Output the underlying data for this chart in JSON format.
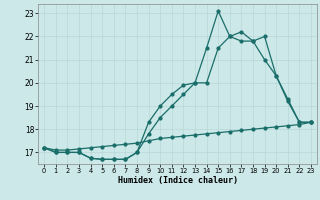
{
  "xlabel": "Humidex (Indice chaleur)",
  "background_color": "#cce8e8",
  "line_color": "#1a6e6a",
  "xlim": [
    -0.5,
    23.5
  ],
  "ylim": [
    16.5,
    23.4
  ],
  "yticks": [
    17,
    18,
    19,
    20,
    21,
    22,
    23
  ],
  "xticks": [
    0,
    1,
    2,
    3,
    4,
    5,
    6,
    7,
    8,
    9,
    10,
    11,
    12,
    13,
    14,
    15,
    16,
    17,
    18,
    19,
    20,
    21,
    22,
    23
  ],
  "curve_spike_x": [
    0,
    1,
    2,
    3,
    4,
    5,
    6,
    7,
    8,
    9,
    10,
    11,
    12,
    13,
    14,
    15,
    16,
    17,
    18,
    19,
    20,
    21,
    22,
    23
  ],
  "curve_spike_y": [
    17.2,
    17.0,
    17.0,
    17.0,
    16.75,
    16.7,
    16.7,
    16.7,
    17.0,
    18.3,
    19.0,
    19.5,
    19.9,
    20.0,
    21.5,
    23.1,
    22.0,
    22.2,
    21.8,
    22.0,
    20.3,
    19.2,
    18.3,
    18.3
  ],
  "curve_smooth_x": [
    0,
    1,
    2,
    3,
    4,
    5,
    6,
    7,
    8,
    9,
    10,
    11,
    12,
    13,
    14,
    15,
    16,
    17,
    18,
    19,
    20,
    21,
    22,
    23
  ],
  "curve_smooth_y": [
    17.2,
    17.0,
    17.0,
    17.0,
    16.75,
    16.7,
    16.7,
    16.7,
    17.0,
    17.8,
    18.5,
    19.0,
    19.5,
    20.0,
    20.0,
    21.5,
    22.0,
    21.8,
    21.8,
    21.0,
    20.3,
    19.3,
    18.3,
    18.3
  ],
  "curve_flat_x": [
    0,
    1,
    2,
    3,
    4,
    5,
    6,
    7,
    8,
    9,
    10,
    11,
    12,
    13,
    14,
    15,
    16,
    17,
    18,
    19,
    20,
    21,
    22,
    23
  ],
  "curve_flat_y": [
    17.2,
    17.1,
    17.1,
    17.15,
    17.2,
    17.25,
    17.3,
    17.35,
    17.4,
    17.5,
    17.6,
    17.65,
    17.7,
    17.75,
    17.8,
    17.85,
    17.9,
    17.95,
    18.0,
    18.05,
    18.1,
    18.15,
    18.2,
    18.3
  ]
}
